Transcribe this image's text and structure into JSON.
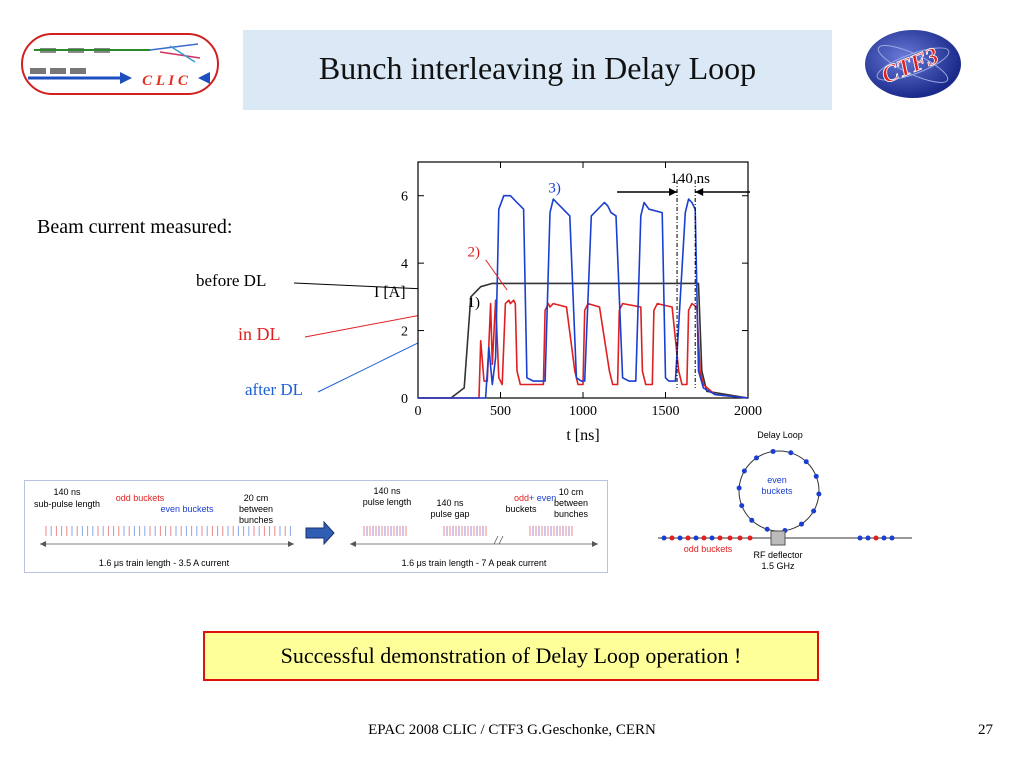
{
  "slide": {
    "title": "Bunch interleaving in Delay Loop",
    "beam_label": "Beam current measured:",
    "labels": {
      "before": "before DL",
      "in": "in DL",
      "after": "after DL"
    },
    "message": "Successful demonstration of Delay Loop operation !",
    "footer": "EPAC 2008 CLIC / CTF3 G.Geschonke, CERN",
    "page": "27"
  },
  "logos": {
    "left": "C L I C",
    "right": "CTF3"
  },
  "colors": {
    "title_bg": "#dbe9f6",
    "before": "#333333",
    "in": "#e02020",
    "after": "#1a3fd0",
    "message_bg": "#ffff99",
    "message_border": "#e01010"
  },
  "chart_data": {
    "type": "line",
    "xlabel": "t [ns]",
    "ylabel": "I [A]",
    "xlim": [
      0,
      2000
    ],
    "ylim": [
      0,
      7
    ],
    "xticks": [
      "0",
      "500",
      "1000",
      "1500",
      "2000"
    ],
    "yticks": [
      "0",
      "2",
      "4",
      "6"
    ],
    "annotations": {
      "curve1": "1)",
      "curve2": "2)",
      "curve3": "3)",
      "width": "140 ns"
    },
    "series": [
      {
        "id": "1",
        "x": [
          0,
          200,
          280,
          320,
          380,
          450,
          1700,
          1720,
          1750,
          2000
        ],
        "y": [
          0,
          0,
          0.3,
          3.0,
          3.3,
          3.4,
          3.4,
          0.8,
          0.2,
          0
        ]
      },
      {
        "id": "2",
        "x": [
          0,
          370,
          380,
          400,
          420,
          440,
          450,
          470,
          490,
          510,
          530,
          550,
          560,
          580,
          590,
          600,
          620,
          700,
          740,
          760,
          770,
          790,
          800,
          820,
          900,
          950,
          970,
          980,
          1000,
          1010,
          1030,
          1100,
          1160,
          1180,
          1190,
          1210,
          1220,
          1240,
          1350,
          1360,
          1380,
          1400,
          1420,
          1430,
          1450,
          1540,
          1580,
          1600,
          1610,
          1630,
          1640,
          1660,
          1690,
          1710,
          1730,
          1800,
          2000
        ],
        "y": [
          0,
          0,
          1.7,
          0.5,
          0.5,
          2.8,
          1.0,
          2.9,
          0.6,
          0.4,
          2.8,
          2.9,
          2.8,
          2.9,
          2.8,
          0.8,
          0.4,
          0.4,
          0.4,
          0.4,
          2.6,
          2.8,
          2.7,
          2.8,
          2.7,
          0.8,
          0.4,
          0.4,
          0.4,
          2.6,
          2.8,
          2.7,
          0.8,
          0.4,
          0.4,
          0.4,
          2.6,
          2.8,
          2.7,
          0.8,
          0.4,
          0.4,
          0.4,
          2.6,
          2.8,
          2.7,
          0.8,
          0.4,
          0.4,
          0.4,
          2.6,
          2.8,
          2.7,
          0.8,
          0.4,
          0.1,
          0
        ]
      },
      {
        "id": "3",
        "x": [
          0,
          410,
          430,
          450,
          470,
          490,
          520,
          560,
          600,
          640,
          660,
          700,
          770,
          800,
          820,
          840,
          880,
          920,
          960,
          990,
          1010,
          1050,
          1130,
          1150,
          1170,
          1200,
          1240,
          1280,
          1320,
          1350,
          1370,
          1400,
          1480,
          1500,
          1520,
          1560,
          1620,
          1640,
          1660,
          1680,
          1700,
          1730,
          1800,
          2000
        ],
        "y": [
          0,
          0,
          1.5,
          0.4,
          1.2,
          5.6,
          6.0,
          6.0,
          5.8,
          5.6,
          0.6,
          0.5,
          0.5,
          5.5,
          5.9,
          5.8,
          5.6,
          5.4,
          0.6,
          0.5,
          0.5,
          5.4,
          5.8,
          5.7,
          5.5,
          5.4,
          0.6,
          0.5,
          0.5,
          5.4,
          5.8,
          5.6,
          5.5,
          0.6,
          0.5,
          0.5,
          5.5,
          5.9,
          5.8,
          5.6,
          0.8,
          0.3,
          0.1,
          0
        ]
      }
    ]
  },
  "beam_diagram": {
    "left": {
      "sub_pulse": [
        "140 ns",
        "sub-pulse length"
      ],
      "odd": "odd buckets",
      "even": "even buckets",
      "spacing": [
        "20 cm",
        "between",
        "bunches"
      ],
      "train": "1.6 μs train length - 3.5 A current"
    },
    "right": {
      "pulse": [
        "140 ns",
        "pulse  length"
      ],
      "gap": [
        "140 ns",
        "pulse  gap"
      ],
      "odd": "odd",
      "plus_even": "+ even",
      "buckets": "buckets",
      "spacing": [
        "10 cm",
        "between",
        "bunches"
      ],
      "train": "1.6  μs train length - 7 A peak current"
    }
  },
  "delay_loop": {
    "title": "Delay Loop",
    "even": [
      "even",
      "buckets"
    ],
    "odd": "odd buckets",
    "rf": [
      "RF deflector",
      "1.5 GHz"
    ]
  }
}
